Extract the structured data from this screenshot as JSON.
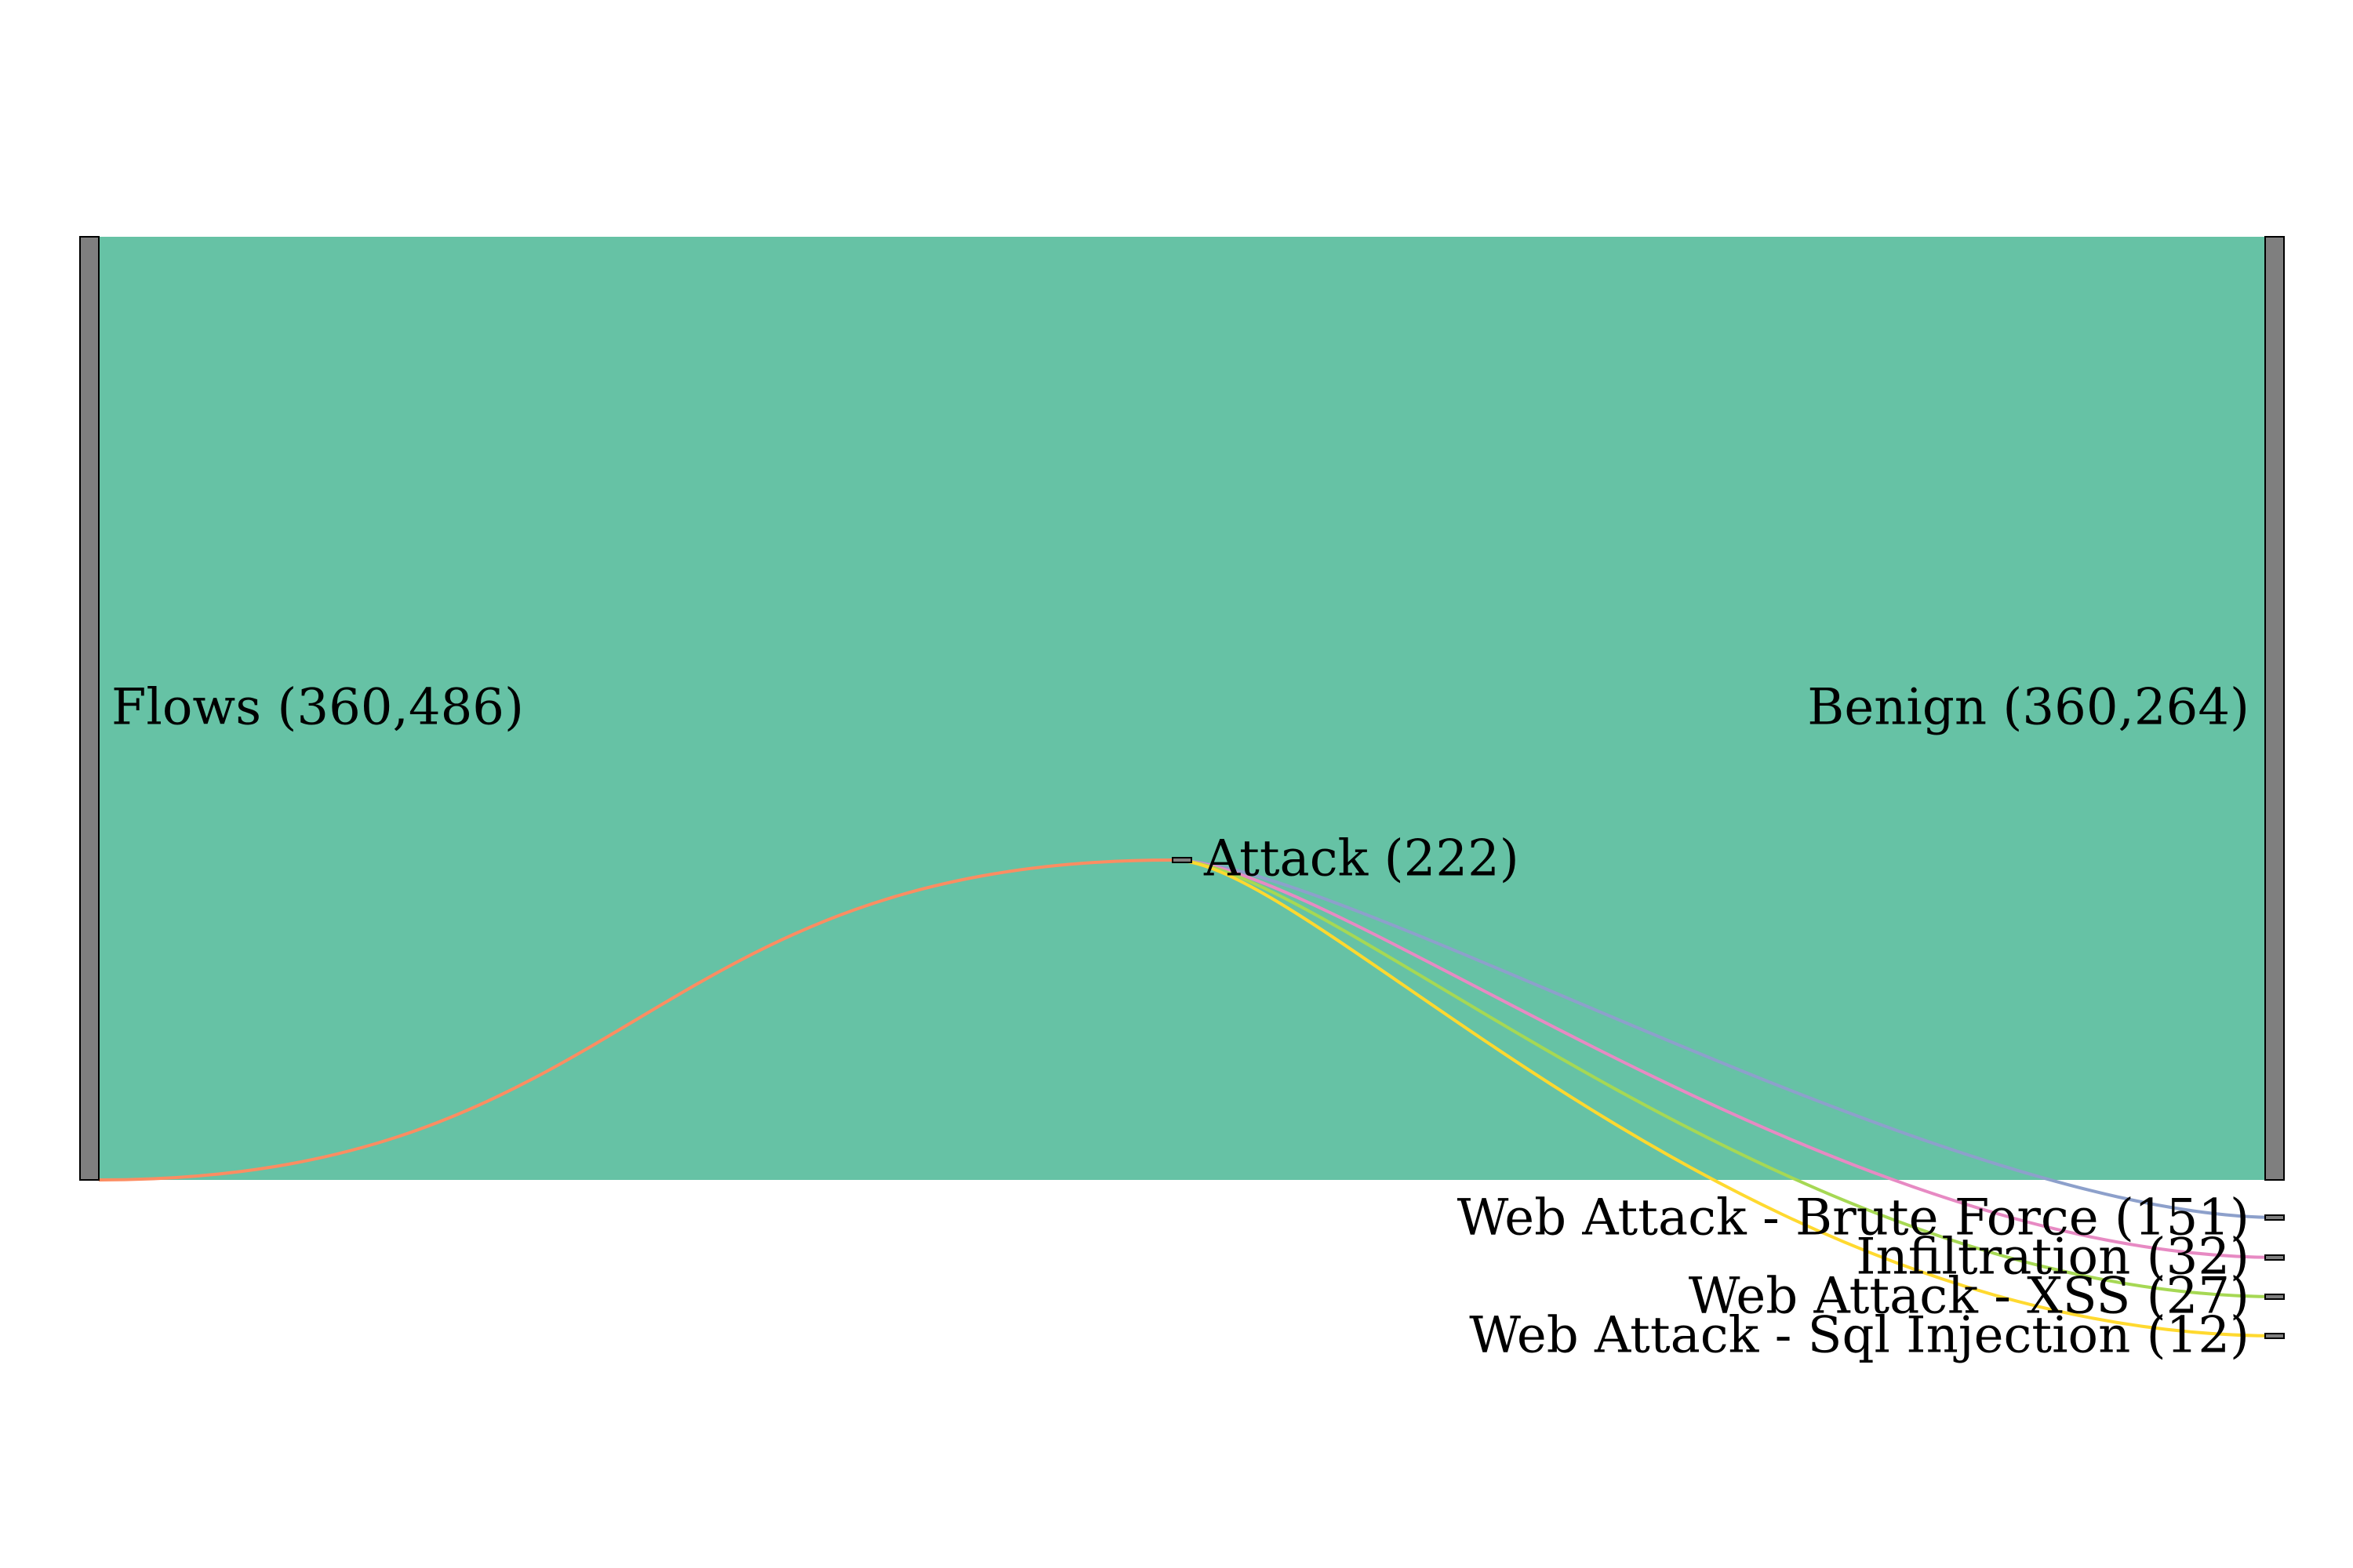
{
  "chart_data": {
    "type": "sankey",
    "nodes": [
      {
        "id": "flows",
        "label": "Flows (360,486)",
        "value": 360486
      },
      {
        "id": "benign",
        "label": "Benign (360,264)",
        "value": 360264
      },
      {
        "id": "attack",
        "label": "Attack (222)",
        "value": 222
      },
      {
        "id": "brute",
        "label": "Web Attack - Brute Force (151)",
        "value": 151
      },
      {
        "id": "infil",
        "label": "Infiltration (32)",
        "value": 32
      },
      {
        "id": "xss",
        "label": "Web Attack - XSS (27)",
        "value": 27
      },
      {
        "id": "sqli",
        "label": "Web Attack - Sql Injection (12)",
        "value": 12
      }
    ],
    "links": [
      {
        "source": "flows",
        "target": "benign",
        "value": 360264,
        "color": "#66c2a5"
      },
      {
        "source": "flows",
        "target": "attack",
        "value": 222,
        "color": "#fc8d62"
      },
      {
        "source": "attack",
        "target": "brute",
        "value": 151,
        "color": "#8da0cb"
      },
      {
        "source": "attack",
        "target": "infil",
        "value": 32,
        "color": "#e78ac3"
      },
      {
        "source": "attack",
        "target": "xss",
        "value": 27,
        "color": "#a6d854"
      },
      {
        "source": "attack",
        "target": "sqli",
        "value": 12,
        "color": "#ffd92f"
      }
    ],
    "colors": {
      "node_fill": "#7f7f7f",
      "node_stroke": "#000000"
    }
  }
}
